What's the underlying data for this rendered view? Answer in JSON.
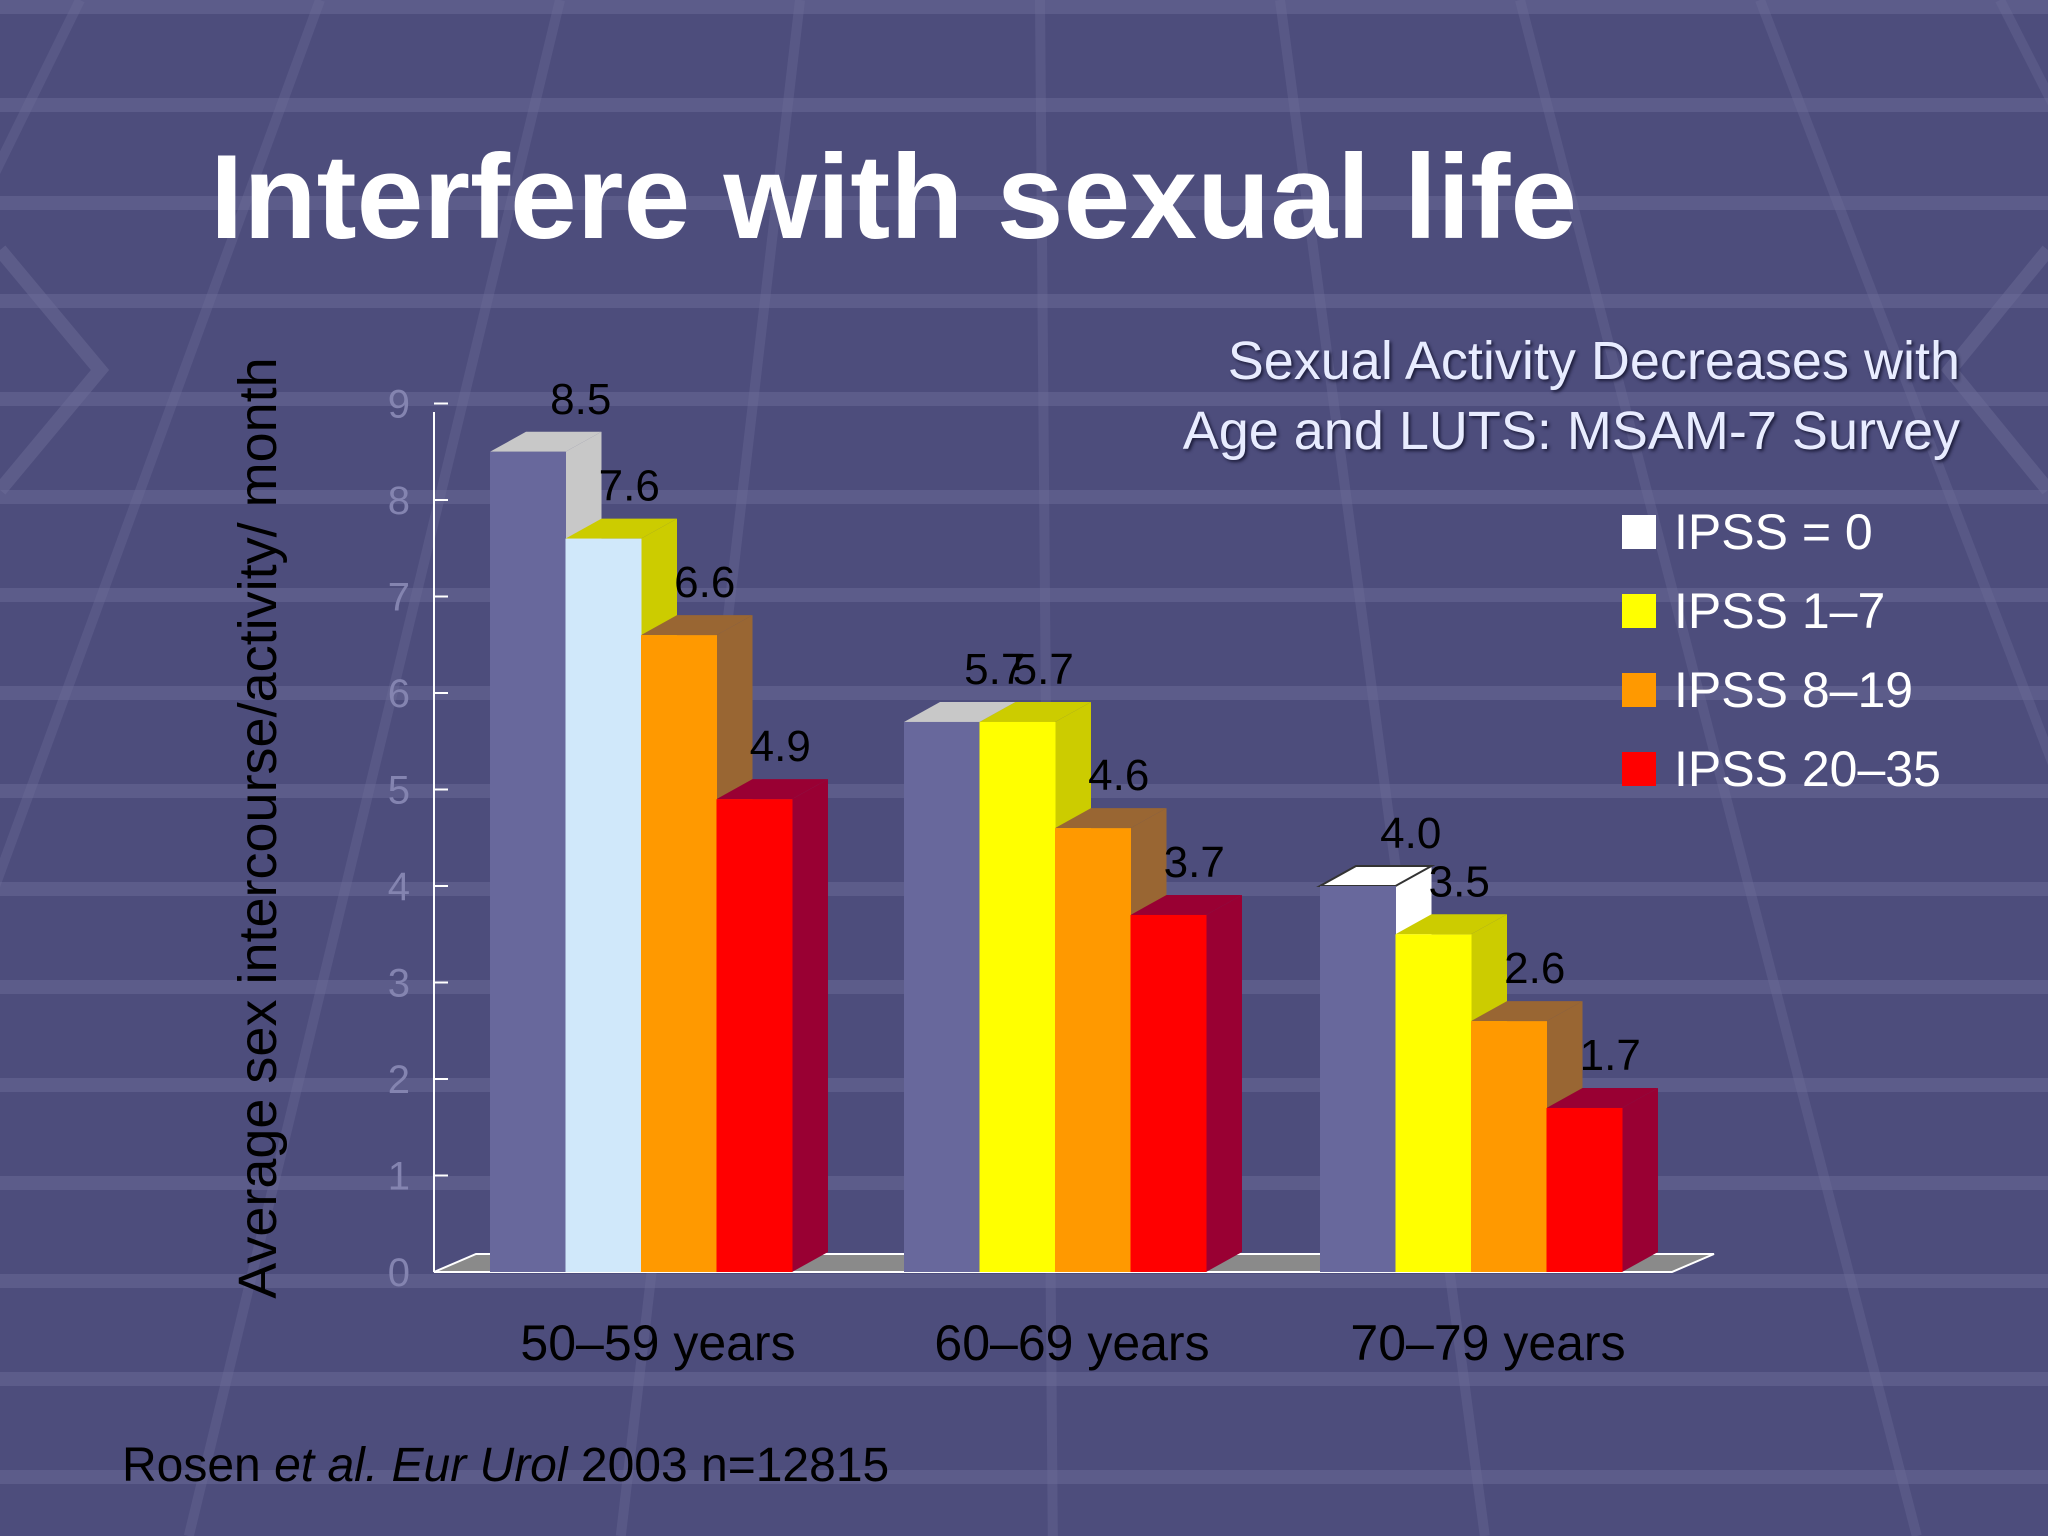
{
  "slide": {
    "title": "Interfere with sexual life",
    "citation": {
      "author": "Rosen ",
      "etal": "et al.",
      "journal": "Eur Urol",
      "rest": " 2003 n=12815"
    }
  },
  "chart_data": {
    "type": "bar",
    "title": "Sexual Activity Decreases with Age and LUTS: MSAM-7 Survey",
    "title_lines": [
      "Sexual Activity Decreases with",
      "Age and LUTS: MSAM-7 Survey"
    ],
    "ylabel": "Average sex intercourse/activity/ month",
    "xlabel": "",
    "ylim": [
      0,
      9
    ],
    "yticks": [
      "0",
      "1",
      "2",
      "3",
      "4",
      "5",
      "6",
      "7",
      "8",
      "9"
    ],
    "categories": [
      "50–59 years",
      "60–69 years",
      "70–79 years"
    ],
    "legend_position": "right",
    "series": [
      {
        "name": "IPSS = 0",
        "values": [
          8.5,
          5.7,
          4.0
        ],
        "value_labels": [
          "8.5",
          "5.7",
          "4.0"
        ],
        "color": "#ffffff"
      },
      {
        "name": "IPSS 1–7",
        "values": [
          7.6,
          5.7,
          3.5
        ],
        "value_labels": [
          "7.6",
          "5.7",
          "3.5"
        ],
        "color": "#ffff00"
      },
      {
        "name": "IPSS 8–19",
        "values": [
          6.6,
          4.6,
          2.6
        ],
        "value_labels": [
          "6.6",
          "4.6",
          "2.6"
        ],
        "color": "#ff9900"
      },
      {
        "name": "IPSS 20–35",
        "values": [
          4.9,
          3.7,
          1.7
        ],
        "value_labels": [
          "4.9",
          "3.7",
          "1.7"
        ],
        "color": "#ff0000"
      }
    ],
    "colors": {
      "ipss0_front": "#68689c",
      "ipss0_side_top": "#c8c8c8",
      "ipss1_front_first_group": "#d0e8fa",
      "ipss1_front": "#ffff00",
      "ipss1_side": "#cccc00",
      "ipss8_front": "#ff9900",
      "ipss8_side": "#996633",
      "ipss20_front": "#ff0000",
      "ipss20_side": "#990033"
    }
  }
}
